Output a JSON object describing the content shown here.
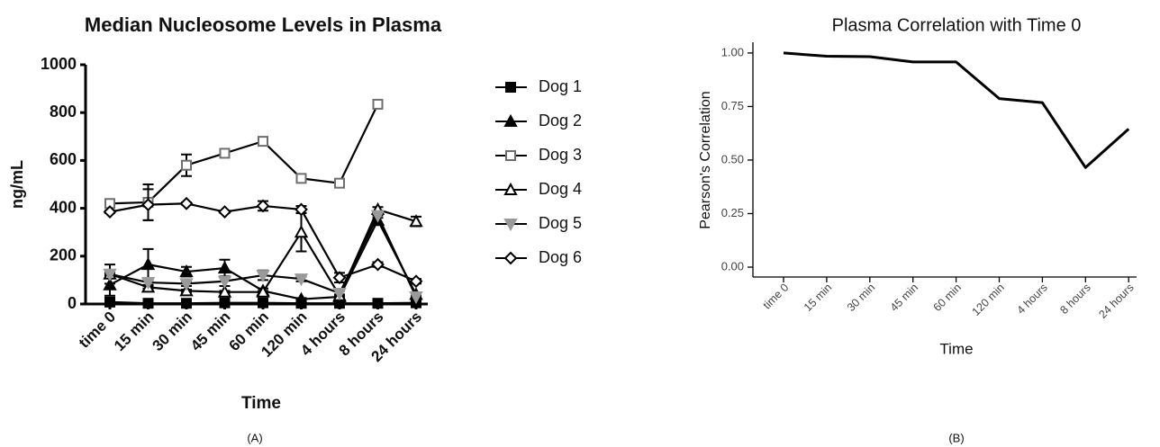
{
  "chart_data": [
    {
      "type": "line",
      "title": "Median Nucleosome Levels in Plasma",
      "x_label": "Time",
      "y_label": "ng/mL",
      "panel_label": "(A)",
      "categories": [
        "time 0",
        "15 min",
        "30 min",
        "45 min",
        "60 min",
        "120 min",
        "4 hours",
        "8 hours",
        "24 hours"
      ],
      "ylim": [
        0,
        1000
      ],
      "yticks": [
        0,
        200,
        400,
        600,
        800,
        1000
      ],
      "legend": "right",
      "series": [
        {
          "name": "Dog 1",
          "color": "#000000",
          "marker": "square",
          "filled": true,
          "values": [
            8,
            3,
            3,
            5,
            5,
            3,
            3,
            3,
            5
          ],
          "errors": [
            5,
            2,
            2,
            2,
            2,
            2,
            2,
            2,
            2
          ]
        },
        {
          "name": "Dog 2",
          "color": "#000000",
          "marker": "triangle",
          "filled": true,
          "values": [
            80,
            165,
            135,
            150,
            55,
            20,
            30,
            350,
            40
          ],
          "errors": [
            45,
            65,
            20,
            35,
            10,
            5,
            5,
            20,
            5
          ]
        },
        {
          "name": "Dog 3",
          "color": "#6e6e6e",
          "marker": "square",
          "filled": false,
          "values": [
            420,
            425,
            580,
            630,
            680,
            525,
            505,
            835,
            null
          ],
          "errors": [
            10,
            75,
            45,
            10,
            10,
            10,
            10,
            10,
            null
          ]
        },
        {
          "name": "Dog 4",
          "color": "#000000",
          "marker": "triangle",
          "filled": false,
          "values": [
            125,
            70,
            55,
            50,
            50,
            300,
            35,
            395,
            345
          ],
          "errors": [
            5,
            5,
            5,
            5,
            5,
            80,
            5,
            10,
            20
          ]
        },
        {
          "name": "Dog 5",
          "color": "#9a9a9a",
          "marker": "triangle-down",
          "filled": true,
          "values": [
            125,
            90,
            85,
            95,
            120,
            105,
            45,
            370,
            30
          ],
          "errors": [
            40,
            10,
            10,
            20,
            20,
            10,
            10,
            10,
            5
          ]
        },
        {
          "name": "Dog 6",
          "color": "#000000",
          "marker": "diamond",
          "filled": false,
          "values": [
            385,
            415,
            420,
            385,
            410,
            395,
            110,
            165,
            95
          ],
          "errors": [
            5,
            65,
            5,
            5,
            20,
            15,
            20,
            10,
            10
          ]
        }
      ]
    },
    {
      "type": "line",
      "title": "Plasma Correlation with Time 0",
      "x_label": "Time",
      "y_label": "Pearson's Correlation",
      "panel_label": "(B)",
      "categories": [
        "time 0",
        "15 min",
        "30 min",
        "45 min",
        "60 min",
        "120 min",
        "4 hours",
        "8 hours",
        "24 hours"
      ],
      "ylim": [
        0,
        1.05
      ],
      "yticks": [
        {
          "value": 0,
          "label": "0.00"
        },
        {
          "value": 0.25,
          "label": "0.25"
        },
        {
          "value": 0.5,
          "label": "0.50"
        },
        {
          "value": 0.75,
          "label": "0.75"
        },
        {
          "value": 1,
          "label": "1.00"
        }
      ],
      "color": "#000000",
      "values": [
        1.0,
        0.985,
        0.983,
        0.958,
        0.958,
        0.787,
        0.768,
        0.465,
        0.645
      ]
    }
  ]
}
